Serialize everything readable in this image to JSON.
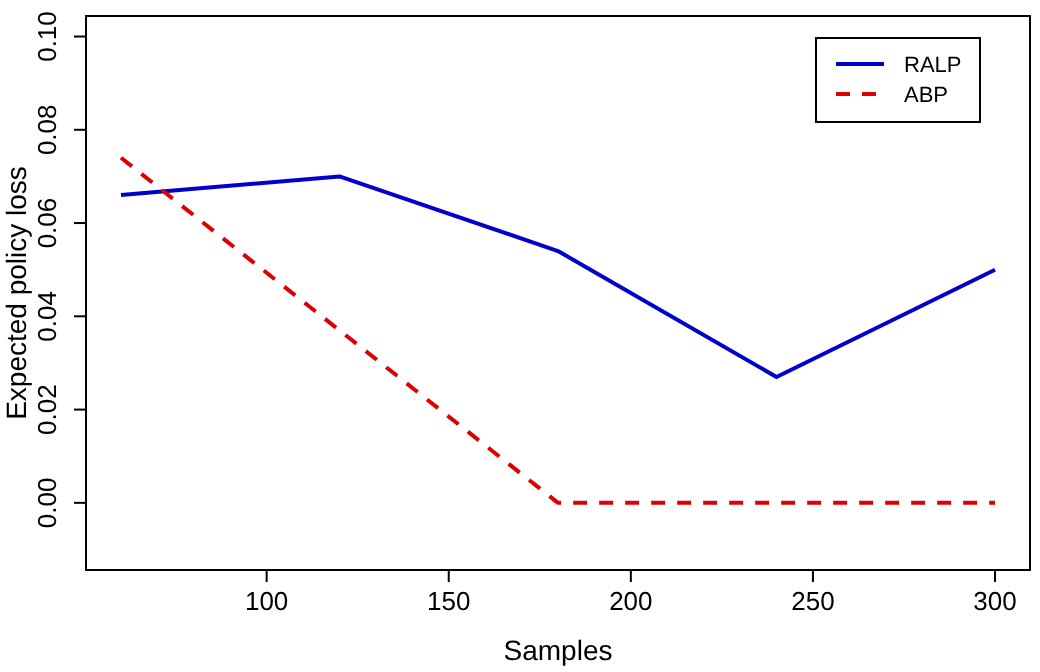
{
  "chart_data": {
    "type": "line",
    "xlabel": "Samples",
    "ylabel": "Expected policy loss",
    "x": [
      60,
      120,
      180,
      240,
      300
    ],
    "series": [
      {
        "name": "RALP",
        "color": "#0000cc",
        "line_style": "solid",
        "values": [
          0.066,
          0.07,
          0.054,
          0.027,
          0.05
        ]
      },
      {
        "name": "ABP",
        "color": "#dd0000",
        "line_style": "dashed",
        "values": [
          0.074,
          0.037,
          0.0,
          0.0,
          0.0
        ]
      }
    ],
    "xlim": [
      50.4,
      309.6
    ],
    "ylim": [
      -0.0144,
      0.1044
    ],
    "xticks": [
      100,
      150,
      200,
      250,
      300
    ],
    "yticks": [
      {
        "value": 0,
        "label": "0.00"
      },
      {
        "value": 0.02,
        "label": "0.02"
      },
      {
        "value": 0.04,
        "label": "0.04"
      },
      {
        "value": 0.06,
        "label": "0.06"
      },
      {
        "value": 0.08,
        "label": "0.08"
      },
      {
        "value": 0.1,
        "label": "0.10"
      }
    ],
    "legend": "top right",
    "grid": false,
    "marker": "none"
  }
}
